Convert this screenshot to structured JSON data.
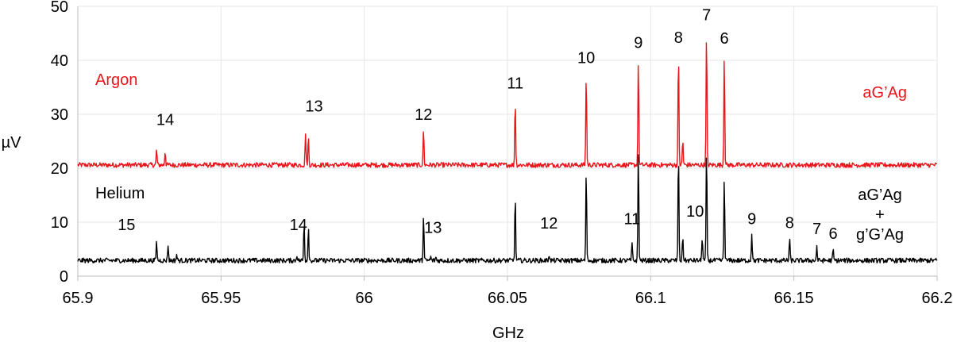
{
  "chart_data": {
    "type": "line",
    "xlabel": "GHz",
    "ylabel": "µV",
    "xlim": [
      65.9,
      66.2
    ],
    "ylim": [
      0,
      50
    ],
    "grid": true,
    "x_ticks": [
      "65.9",
      "65.95",
      "66",
      "66.05",
      "66.1",
      "66.15",
      "66.2"
    ],
    "y_ticks": [
      "0",
      "10",
      "20",
      "30",
      "40",
      "50"
    ],
    "series": [
      {
        "name": "Argon",
        "conformer": "aG’Ag",
        "color": "#e8151b",
        "baseline": 20.6,
        "peaks": [
          {
            "x": 65.9275,
            "y": 23.5
          },
          {
            "x": 65.9305,
            "y": 23.2
          },
          {
            "x": 65.9795,
            "y": 26.7
          },
          {
            "x": 65.9805,
            "y": 25.8
          },
          {
            "x": 66.0207,
            "y": 27.3
          },
          {
            "x": 66.0527,
            "y": 33.0
          },
          {
            "x": 66.0775,
            "y": 37.7
          },
          {
            "x": 66.0957,
            "y": 40.5
          },
          {
            "x": 66.1097,
            "y": 41.4
          },
          {
            "x": 66.1112,
            "y": 25.3
          },
          {
            "x": 66.1195,
            "y": 45.6
          },
          {
            "x": 66.1257,
            "y": 41.3
          }
        ],
        "labels": [
          {
            "text": "14",
            "x": 65.9305,
            "y": 28.0
          },
          {
            "text": "13",
            "x": 65.9825,
            "y": 30.5
          },
          {
            "text": "12",
            "x": 66.0207,
            "y": 29.0
          },
          {
            "text": "11",
            "x": 66.0527,
            "y": 34.8
          },
          {
            "text": "10",
            "x": 66.0775,
            "y": 39.5
          },
          {
            "text": "9",
            "x": 66.0957,
            "y": 42.3
          },
          {
            "text": "8",
            "x": 66.1097,
            "y": 43.2
          },
          {
            "text": "7",
            "x": 66.1195,
            "y": 47.4
          },
          {
            "text": "6",
            "x": 66.1257,
            "y": 43.1
          }
        ]
      },
      {
        "name": "Helium",
        "conformer": [
          "aG’Ag",
          "+",
          "g’G’Ag"
        ],
        "color": "#000000",
        "baseline": 2.9,
        "peaks": [
          {
            "x": 65.9275,
            "y": 6.5
          },
          {
            "x": 65.9315,
            "y": 5.9
          },
          {
            "x": 65.9345,
            "y": 4.0
          },
          {
            "x": 65.9765,
            "y": 4.0
          },
          {
            "x": 65.979,
            "y": 10.2
          },
          {
            "x": 65.9805,
            "y": 9.3
          },
          {
            "x": 66.0207,
            "y": 11.3
          },
          {
            "x": 66.0232,
            "y": 3.5
          },
          {
            "x": 66.025,
            "y": 3.5
          },
          {
            "x": 66.0527,
            "y": 14.8
          },
          {
            "x": 66.0645,
            "y": 4.1
          },
          {
            "x": 66.0775,
            "y": 19.5
          },
          {
            "x": 66.0935,
            "y": 6.0
          },
          {
            "x": 66.0957,
            "y": 23.8
          },
          {
            "x": 66.1097,
            "y": 23.5
          },
          {
            "x": 66.1112,
            "y": 7.5
          },
          {
            "x": 66.118,
            "y": 7.4
          },
          {
            "x": 66.1195,
            "y": 24.0
          },
          {
            "x": 66.1257,
            "y": 18.3
          },
          {
            "x": 66.1353,
            "y": 8.0
          },
          {
            "x": 66.1485,
            "y": 7.0
          },
          {
            "x": 66.158,
            "y": 5.5
          },
          {
            "x": 66.1637,
            "y": 4.9
          }
        ],
        "labels": [
          {
            "text": "15",
            "x": 65.917,
            "y": 8.5
          },
          {
            "text": "14",
            "x": 65.977,
            "y": 8.5
          },
          {
            "text": "13",
            "x": 66.024,
            "y": 8.0
          },
          {
            "text": "12",
            "x": 66.0645,
            "y": 8.8
          },
          {
            "text": "11",
            "x": 66.0935,
            "y": 9.6
          },
          {
            "text": "10",
            "x": 66.1155,
            "y": 11.0
          },
          {
            "text": "9",
            "x": 66.1353,
            "y": 9.6
          },
          {
            "text": "8",
            "x": 66.1485,
            "y": 8.9
          },
          {
            "text": "7",
            "x": 66.158,
            "y": 7.8
          },
          {
            "text": "6",
            "x": 66.1637,
            "y": 6.9
          }
        ]
      }
    ]
  }
}
